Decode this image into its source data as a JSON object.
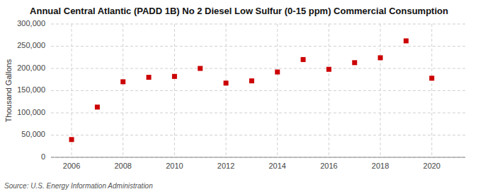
{
  "chart_data": {
    "type": "scatter",
    "title": "Annual Central Atlantic (PADD 1B) No 2 Diesel Low Sulfur (0-15 ppm) Commercial Consumption",
    "y_label": "Thousand Gallons",
    "annotations": [
      "Source: U.S. Energy Information Administration"
    ],
    "x": [
      2006,
      2007,
      2008,
      2009,
      2010,
      2011,
      2012,
      2013,
      2014,
      2015,
      2016,
      2017,
      2018,
      2019,
      2020
    ],
    "values": [
      40000,
      113000,
      170000,
      180000,
      182000,
      200000,
      167000,
      172000,
      192000,
      220000,
      198000,
      213000,
      224000,
      262000,
      178000
    ],
    "color": "#cc0000",
    "marker": "square",
    "grid": true,
    "xlim": [
      2005.2,
      2021.3
    ],
    "xticks": [
      2006,
      2008,
      2010,
      2012,
      2014,
      2016,
      2018,
      2020
    ],
    "ylim": [
      0,
      300000
    ],
    "yticks": [
      0,
      {
        "value": 50000,
        "label": "50,000"
      },
      {
        "value": 100000,
        "label": "100,000"
      },
      {
        "value": 150000,
        "label": "150,000"
      },
      {
        "value": 200000,
        "label": "200,000"
      },
      {
        "value": 250000,
        "label": "250,000"
      },
      {
        "value": 300000,
        "label": "300,000"
      }
    ]
  }
}
